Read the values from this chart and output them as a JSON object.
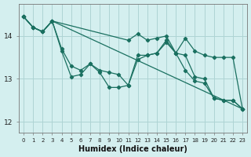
{
  "xlabel": "Humidex (Indice chaleur)",
  "bg_color": "#d4efef",
  "grid_color": "#aed4d4",
  "line_color": "#1a7060",
  "xlim": [
    -0.5,
    23.5
  ],
  "ylim": [
    11.75,
    14.75
  ],
  "yticks": [
    12,
    13,
    14
  ],
  "xticks": [
    0,
    1,
    2,
    3,
    4,
    5,
    6,
    7,
    8,
    9,
    10,
    11,
    12,
    13,
    14,
    15,
    16,
    17,
    18,
    19,
    20,
    21,
    22,
    23
  ],
  "line1_x": [
    0,
    1,
    2,
    3,
    4,
    5,
    6,
    7,
    8,
    9,
    10,
    11,
    12,
    13,
    14,
    15,
    16,
    17,
    18,
    19,
    20,
    21,
    22,
    23
  ],
  "line1_y": [
    14.45,
    14.2,
    14.1,
    14.35,
    13.65,
    13.05,
    13.1,
    13.35,
    13.15,
    12.8,
    12.8,
    12.85,
    13.55,
    13.55,
    13.6,
    13.9,
    13.6,
    13.55,
    13.05,
    13.0,
    12.55,
    12.5,
    12.5,
    12.3
  ],
  "line2_x": [
    0,
    1,
    2,
    3,
    4,
    5,
    6,
    7,
    8,
    9,
    10,
    11,
    12,
    13,
    14,
    15,
    16,
    17,
    18,
    19,
    20,
    21,
    22,
    23
  ],
  "line2_y": [
    14.45,
    14.2,
    14.1,
    14.35,
    13.7,
    13.3,
    13.2,
    13.35,
    13.2,
    13.15,
    13.1,
    12.85,
    13.45,
    13.55,
    13.6,
    13.85,
    13.6,
    13.2,
    12.95,
    12.9,
    12.55,
    12.5,
    12.5,
    12.3
  ],
  "line3_x": [
    0,
    1,
    2,
    3,
    23
  ],
  "line3_y": [
    14.45,
    14.2,
    14.1,
    14.35,
    12.3
  ],
  "line4_x": [
    0,
    1,
    2,
    3,
    11,
    12,
    13,
    14,
    15,
    16,
    17,
    18,
    19,
    20,
    21,
    22,
    23
  ],
  "line4_y": [
    14.45,
    14.2,
    14.1,
    14.35,
    13.9,
    14.05,
    13.9,
    13.95,
    14.0,
    13.6,
    13.95,
    13.65,
    13.55,
    13.5,
    13.5,
    13.5,
    12.3
  ]
}
